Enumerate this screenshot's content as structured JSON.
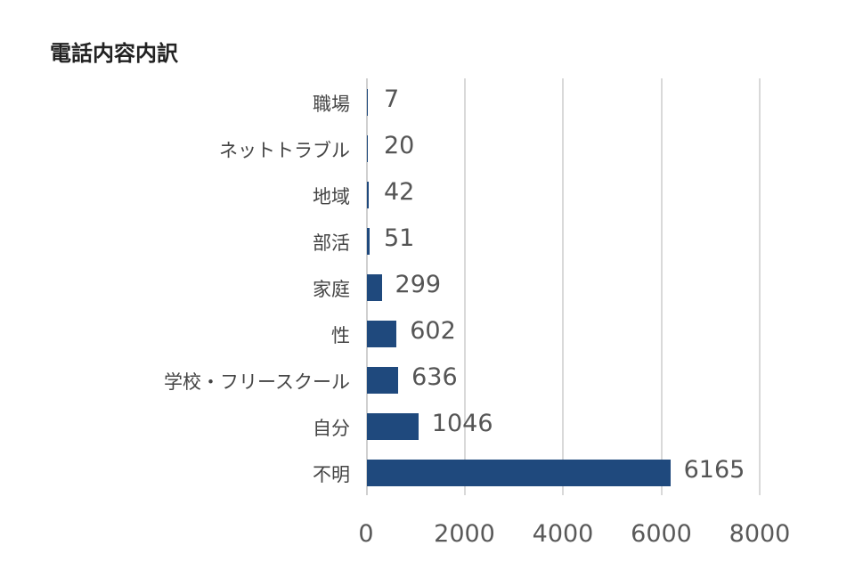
{
  "chart_data": {
    "type": "bar",
    "orientation": "horizontal",
    "title": "電話内容内訳",
    "xlabel": "",
    "ylabel": "",
    "categories": [
      "職場",
      "ネットトラブル",
      "地域",
      "部活",
      "家庭",
      "性",
      "学校・フリースクール",
      "自分",
      "不明"
    ],
    "values": [
      7,
      20,
      42,
      51,
      299,
      602,
      636,
      1046,
      6165
    ],
    "xlim": [
      0,
      8000
    ],
    "xticks": [
      "0",
      "2000",
      "4000",
      "6000",
      "8000"
    ],
    "grid": true,
    "legend": null,
    "bar_color": "#1f497d",
    "data_labels": true
  }
}
